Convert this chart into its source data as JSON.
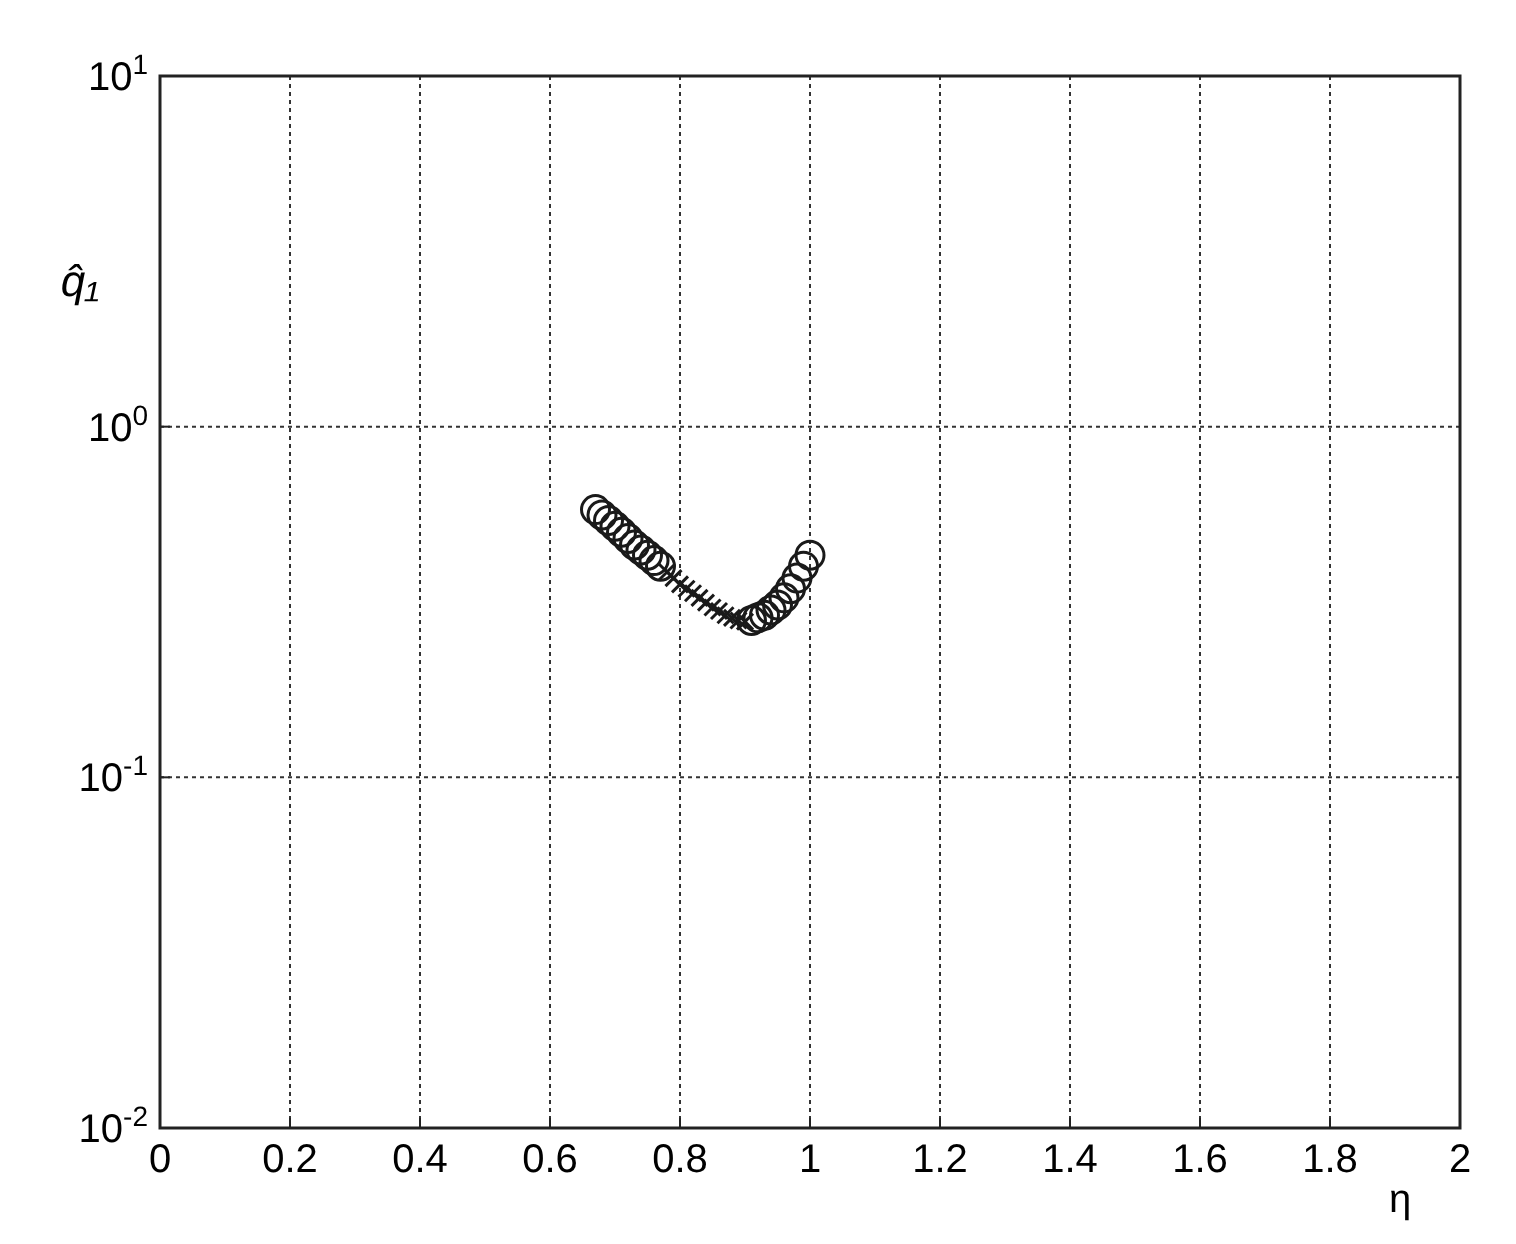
{
  "chart_data": {
    "type": "scatter",
    "xlabel": "η",
    "ylabel": "q̂₁",
    "log": "y",
    "grid": true,
    "xlim": [
      0,
      2
    ],
    "xticks": [
      0,
      0.2,
      0.4,
      0.6,
      0.8,
      1,
      1.2,
      1.4,
      1.6,
      1.8,
      2
    ],
    "ylim": [
      0.01,
      10
    ],
    "yticks": [
      {
        "value": 0.01,
        "label": "10$^{-2}$"
      },
      {
        "value": 0.1,
        "label": "10$^{-1}$"
      },
      {
        "value": 1,
        "label": "10$^{0}$"
      },
      {
        "value": 10,
        "label": "10$^{1}$"
      }
    ],
    "series": [
      {
        "color": "#1a1a1a",
        "marker": "circle",
        "x": [
          0.67,
          0.68,
          0.69,
          0.7,
          0.71,
          0.72,
          0.73,
          0.74,
          0.75,
          0.76,
          0.77
        ],
        "values": [
          0.58,
          0.56,
          0.54,
          0.52,
          0.5,
          0.48,
          0.46,
          0.445,
          0.43,
          0.415,
          0.4
        ]
      },
      {
        "color": "#1a1a1a",
        "marker": "cross",
        "x": [
          0.78,
          0.79,
          0.8,
          0.81,
          0.82,
          0.83,
          0.84,
          0.85,
          0.86,
          0.87,
          0.88,
          0.89,
          0.9
        ],
        "values": [
          0.385,
          0.37,
          0.355,
          0.345,
          0.335,
          0.325,
          0.315,
          0.305,
          0.298,
          0.29,
          0.285,
          0.28,
          0.278
        ]
      },
      {
        "color": "#1a1a1a",
        "marker": "circle",
        "x": [
          0.91,
          0.92,
          0.93,
          0.94,
          0.95,
          0.96,
          0.97,
          0.98,
          0.99,
          1.0
        ],
        "values": [
          0.28,
          0.285,
          0.29,
          0.3,
          0.31,
          0.325,
          0.345,
          0.37,
          0.4,
          0.43
        ]
      }
    ]
  }
}
